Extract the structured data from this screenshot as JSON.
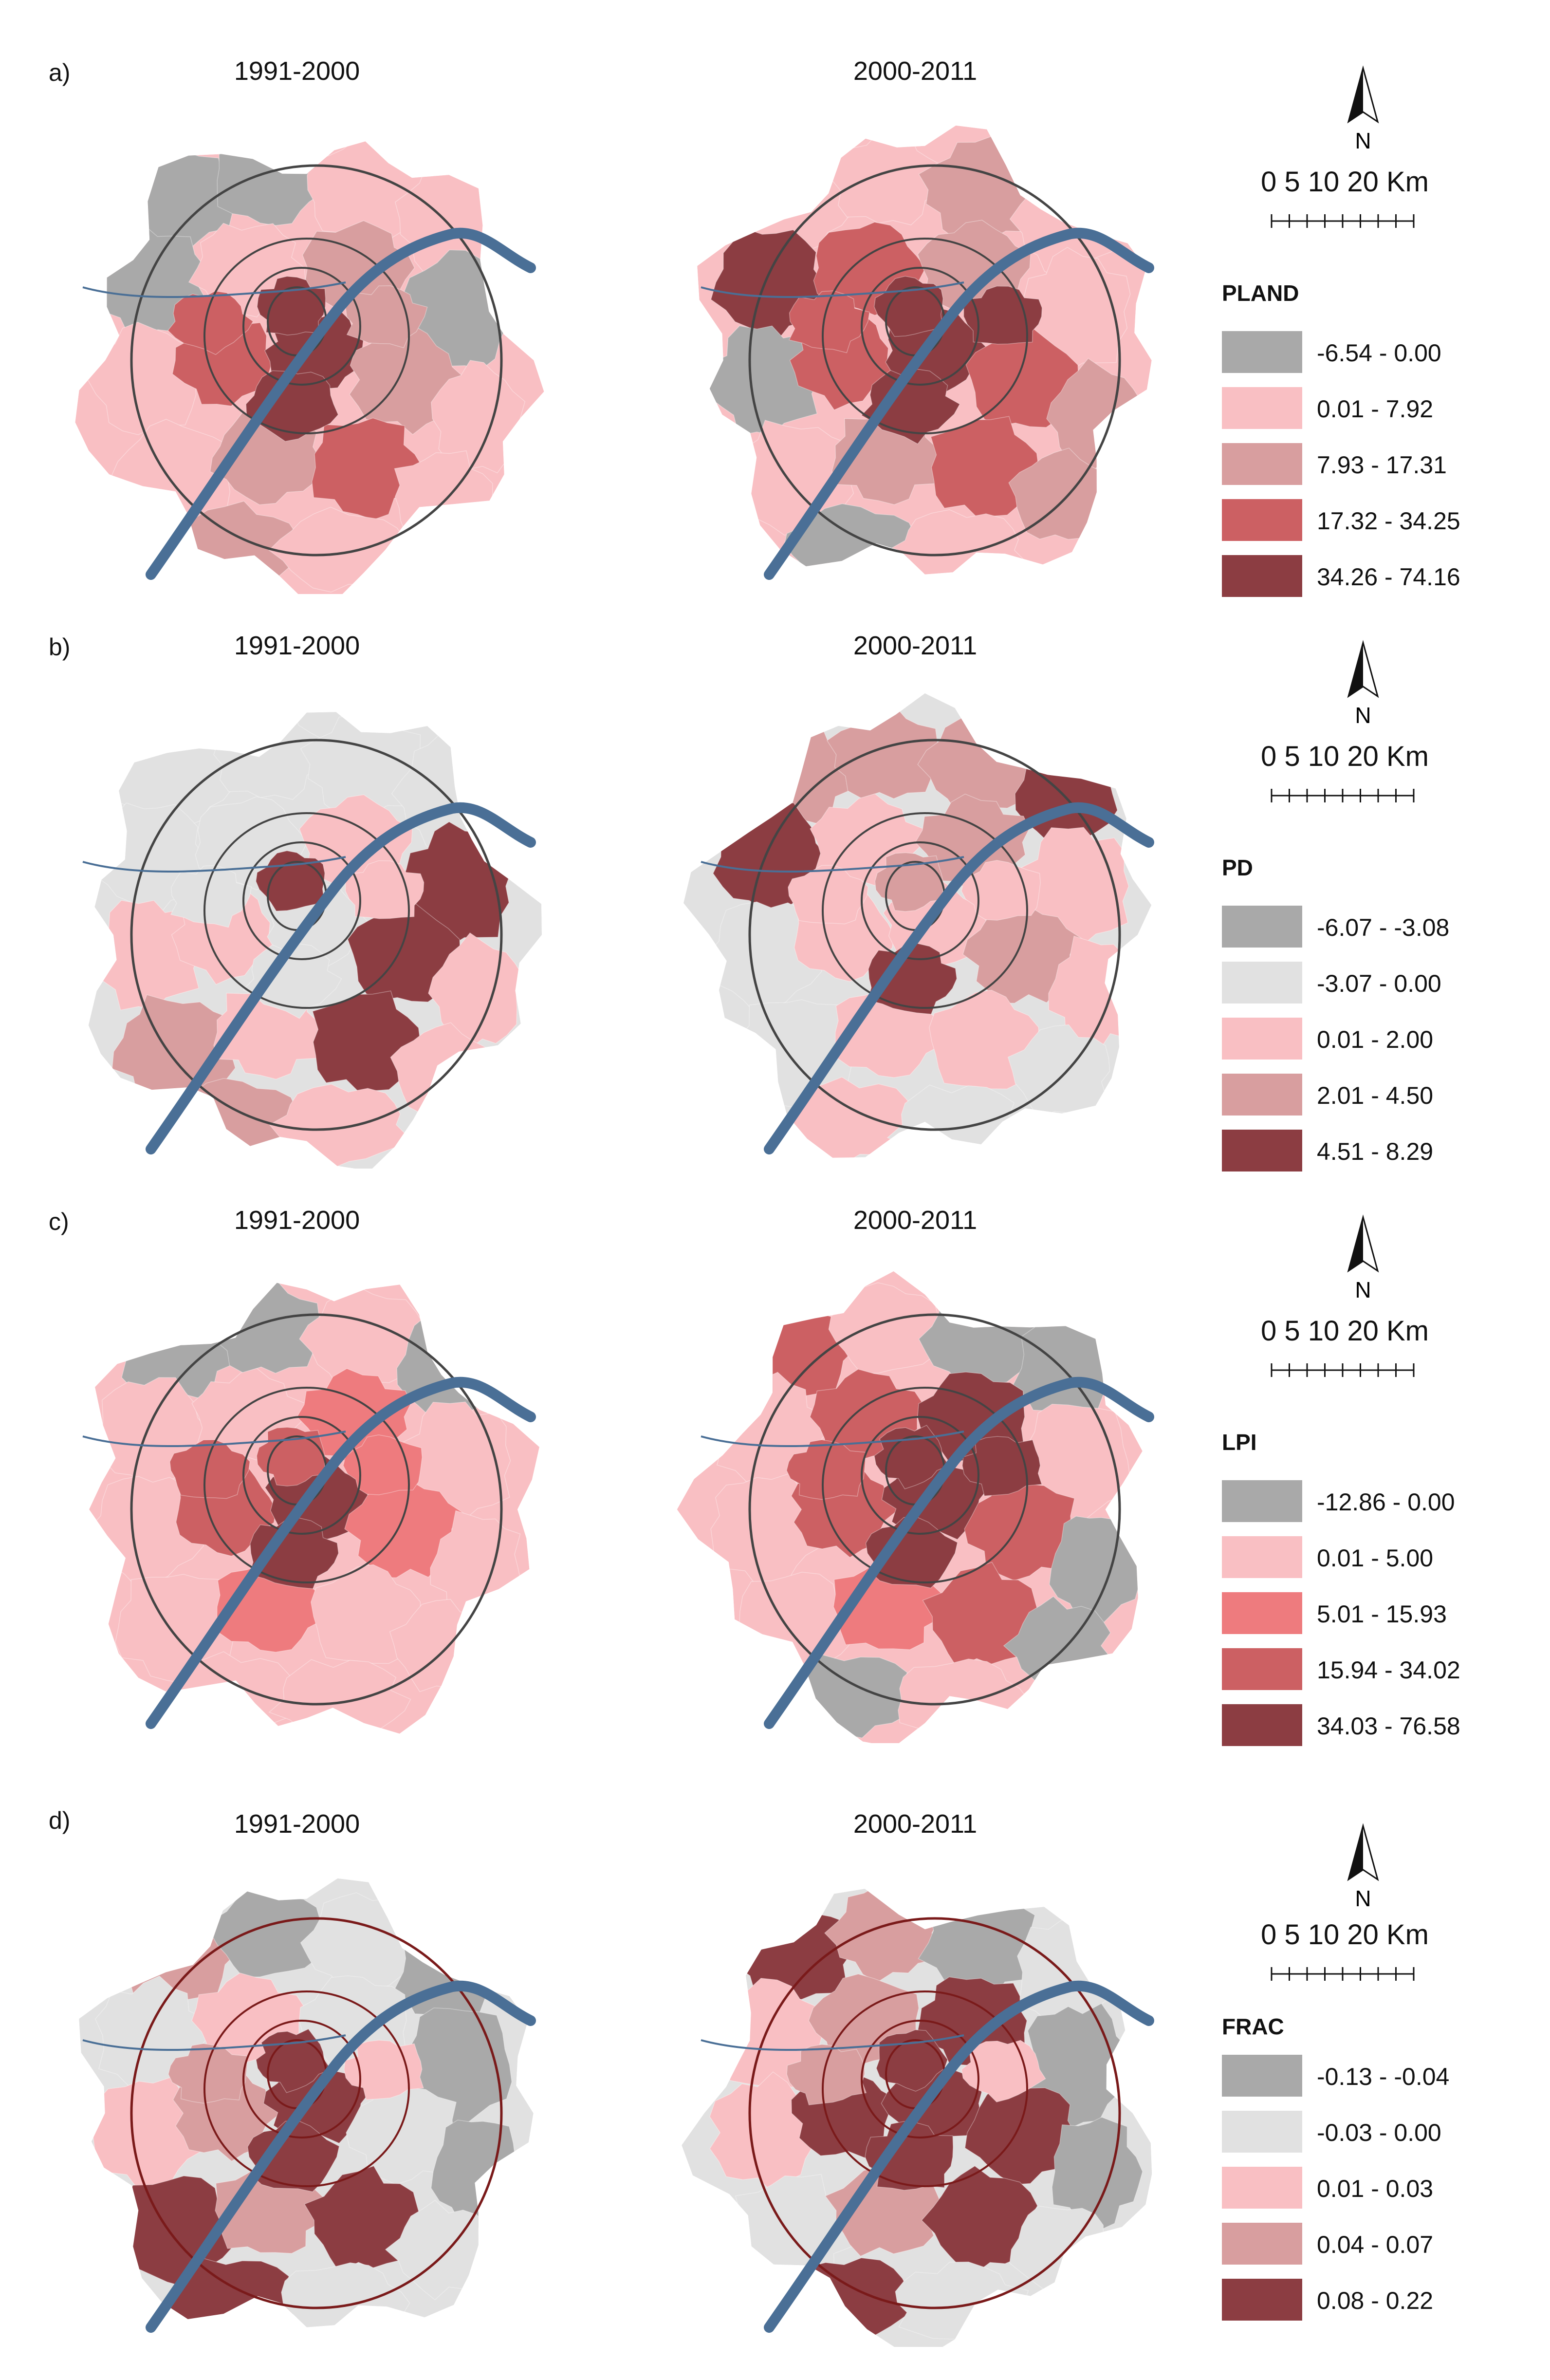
{
  "figure": {
    "panels": [
      {
        "label": "a)",
        "periods": [
          "1991-2000",
          "2000-2011"
        ],
        "north": "N",
        "scale_text": "0  5 10     20 Km",
        "legend": {
          "title": "PLAND",
          "items": [
            {
              "label": "-6.54 - 0.00",
              "color": "#a9a9a9"
            },
            {
              "label": "0.01 - 7.92",
              "color": "#f9bfc3"
            },
            {
              "label": "7.93 - 17.31",
              "color": "#d89e9f"
            },
            {
              "label": "17.32 - 34.25",
              "color": "#cc6063"
            },
            {
              "label": "34.26 - 74.16",
              "color": "#8c3d42"
            }
          ]
        }
      },
      {
        "label": "b)",
        "periods": [
          "1991-2000",
          "2000-2011"
        ],
        "north": "N",
        "scale_text": "0  5 10     20 Km",
        "legend": {
          "title": "PD",
          "items": [
            {
              "label": "-6.07 - -3.08",
              "color": "#a9a9a9"
            },
            {
              "label": "-3.07 - 0.00",
              "color": "#e1e1e1"
            },
            {
              "label": "0.01 - 2.00",
              "color": "#f9bfc3"
            },
            {
              "label": "2.01 - 4.50",
              "color": "#d89e9f"
            },
            {
              "label": "4.51 - 8.29",
              "color": "#8c3d42"
            }
          ]
        }
      },
      {
        "label": "c)",
        "periods": [
          "1991-2000",
          "2000-2011"
        ],
        "north": "N",
        "scale_text": "0  5 10     20 Km",
        "legend": {
          "title": "LPI",
          "items": [
            {
              "label": "-12.86 - 0.00",
              "color": "#a9a9a9"
            },
            {
              "label": "0.01 - 5.00",
              "color": "#f9bfc3"
            },
            {
              "label": "5.01 - 15.93",
              "color": "#ee7b7e"
            },
            {
              "label": "15.94 - 34.02",
              "color": "#cc6063"
            },
            {
              "label": "34.03 - 76.58",
              "color": "#8c3d42"
            }
          ]
        }
      },
      {
        "label": "d)",
        "periods": [
          "1991-2000",
          "2000-2011"
        ],
        "north": "N",
        "scale_text": "0  5 10     20 Km",
        "legend": {
          "title": "FRAC",
          "items": [
            {
              "label": "-0.13 - -0.04",
              "color": "#a9a9a9"
            },
            {
              "label": "-0.03 - 0.00",
              "color": "#e1e1e1"
            },
            {
              "label": "0.01 - 0.03",
              "color": "#f9bfc3"
            },
            {
              "label": "0.04 - 0.07",
              "color": "#d89e9f"
            },
            {
              "label": "0.08 - 0.22",
              "color": "#8c3d42"
            }
          ]
        }
      }
    ],
    "colors": {
      "river": "#4a6f96",
      "ring_dark": "#444444",
      "ring_red": "#7a1a1a"
    }
  }
}
